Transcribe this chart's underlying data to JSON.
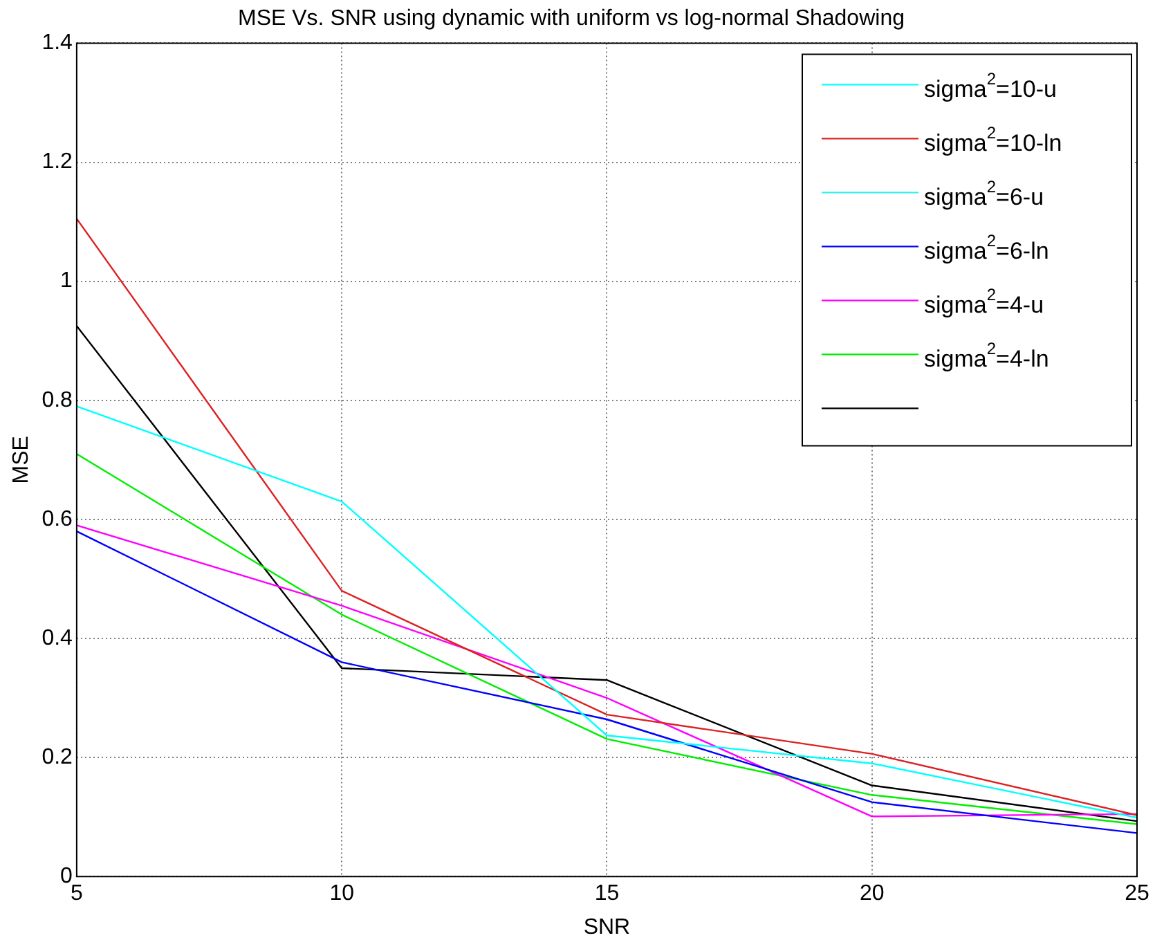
{
  "chart_data": {
    "type": "line",
    "title": "MSE Vs. SNR using dynamic with uniform vs log-normal Shadowing",
    "xlabel": "SNR",
    "ylabel": "MSE",
    "x": [
      5,
      10,
      15,
      20,
      25
    ],
    "series": [
      {
        "name": "sigma$^{2}$=10-u",
        "color": "#00ffff",
        "values": [
          0.79,
          0.63,
          0.237,
          0.19,
          0.099
        ]
      },
      {
        "name": "sigma$^{2}$=10-ln",
        "color": "#dd2222",
        "values": [
          1.105,
          0.48,
          0.272,
          0.206,
          0.103
        ]
      },
      {
        "name": "sigma$^{2}$=6-u",
        "color": "#33eeee",
        "values": [
          null,
          null,
          null,
          null,
          null
        ]
      },
      {
        "name": "sigma$^{2}$=6-ln",
        "color": "#0000ff",
        "values": [
          0.58,
          0.36,
          0.264,
          0.125,
          0.073
        ]
      },
      {
        "name": "sigma$^{2}$=4-u",
        "color": "#ff00ff",
        "values": [
          0.59,
          0.455,
          0.3,
          0.101,
          0.105
        ]
      },
      {
        "name": "sigma$^{2}$=4-ln",
        "color": "#00ee00",
        "values": [
          0.71,
          0.44,
          0.231,
          0.137,
          0.088
        ]
      },
      {
        "color": "#000000",
        "values": [
          0.925,
          0.35,
          0.33,
          0.153,
          0.093
        ]
      }
    ],
    "xlim": [
      5,
      25
    ],
    "xticks": [
      5,
      10,
      15,
      20,
      25
    ],
    "ylim": [
      0,
      1.4
    ],
    "yticks": [
      0,
      0.2,
      0.4,
      0.6,
      0.8,
      1,
      1.2,
      1.4
    ],
    "grid": true,
    "legend": "top right"
  }
}
